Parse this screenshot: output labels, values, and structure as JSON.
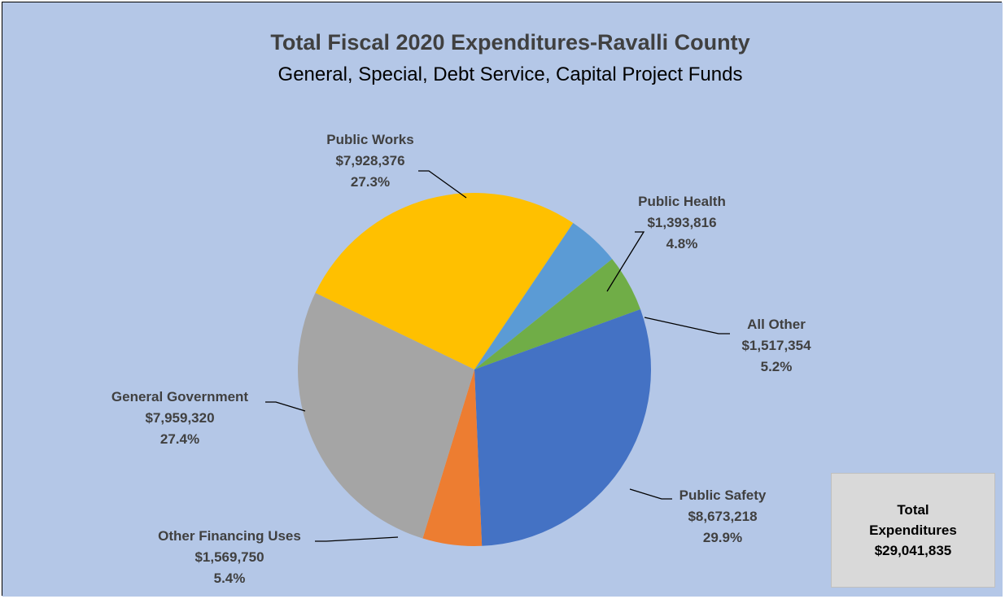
{
  "colors": {
    "background": "#b4c7e7",
    "text": "#404040",
    "leader": "#000000"
  },
  "chart_data": {
    "type": "pie",
    "title": "Total Fiscal 2020 Expenditures-Ravalli County",
    "subtitle": "General, Special, Debt Service, Capital Project Funds",
    "slices": [
      {
        "label": "Public Works",
        "value": 7928376,
        "value_label": "$7,928,376",
        "percent_label": "27.3%",
        "color": "#ffc000"
      },
      {
        "label": "Public Health",
        "value": 1393816,
        "value_label": "$1,393,816",
        "percent_label": "4.8%",
        "color": "#5b9bd5"
      },
      {
        "label": "All Other",
        "value": 1517354,
        "value_label": "$1,517,354",
        "percent_label": "5.2%",
        "color": "#70ad47"
      },
      {
        "label": "Public Safety",
        "value": 8673218,
        "value_label": "$8,673,218",
        "percent_label": "29.9%",
        "color": "#4472c4"
      },
      {
        "label": "Other Financing Uses",
        "value": 1569750,
        "value_label": "$1,569,750",
        "percent_label": "5.4%",
        "color": "#ed7d31"
      },
      {
        "label": "General Government",
        "value": 7959320,
        "value_label": "$7,959,320",
        "percent_label": "27.4%",
        "color": "#a5a5a5"
      }
    ]
  },
  "total_box": {
    "line1": "Total",
    "line2": "Expenditures",
    "line3": "$29,041,835"
  }
}
